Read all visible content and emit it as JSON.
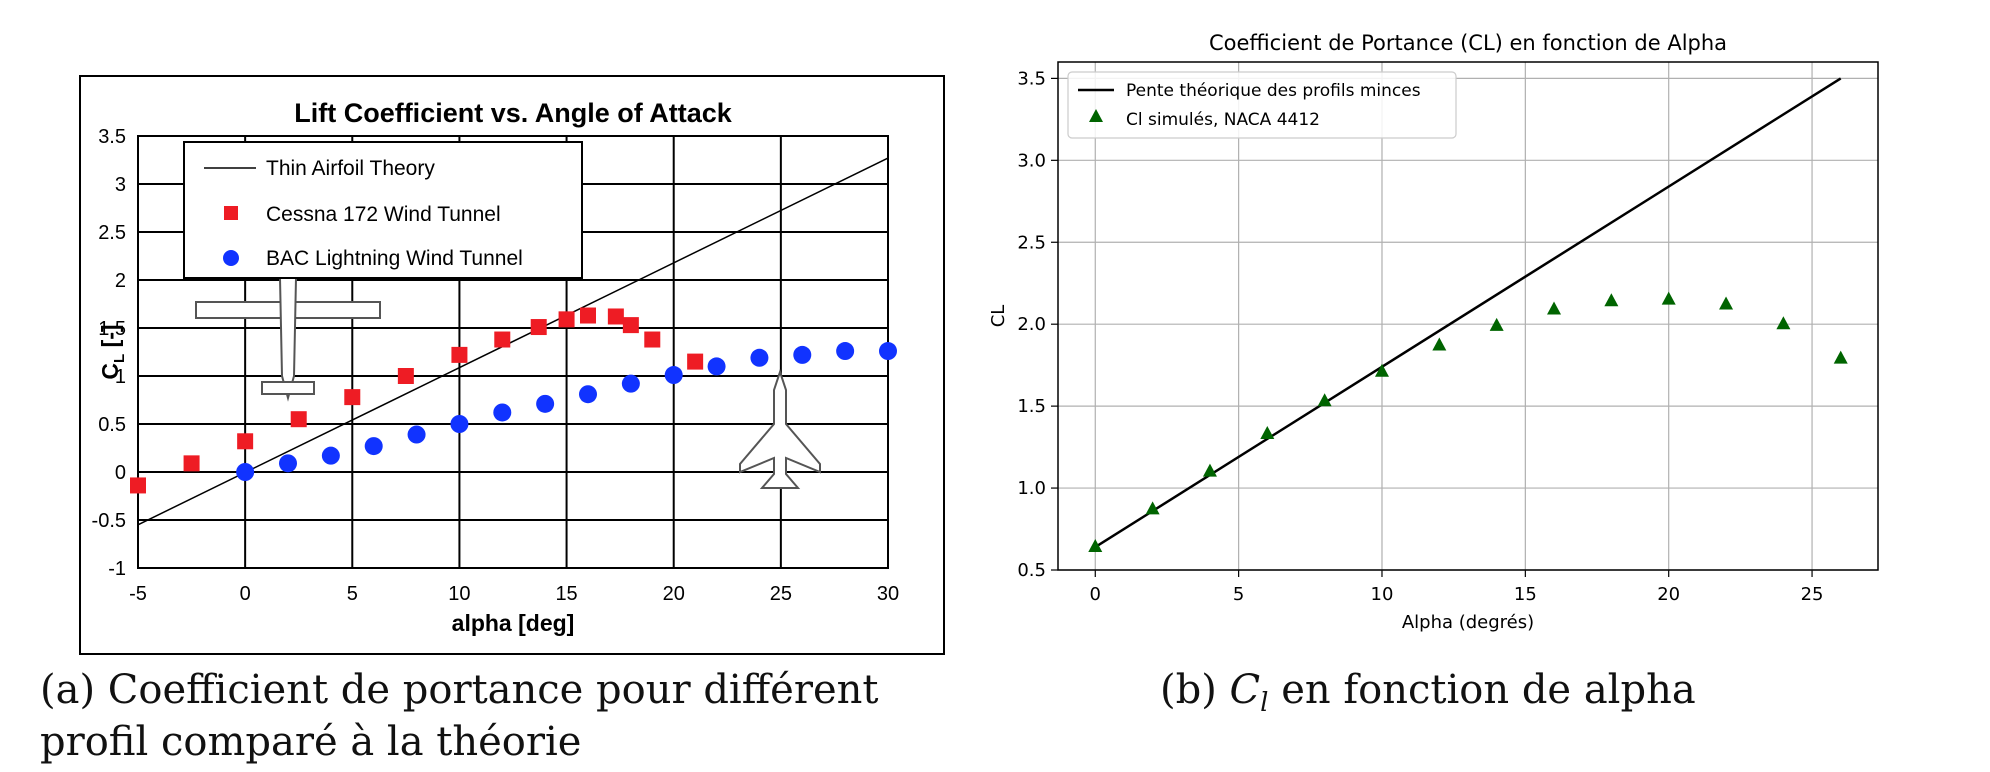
{
  "figure_a": {
    "caption_label": "(a)",
    "caption_text": "Coefficient de portance pour différent profil comparé à la théorie"
  },
  "figure_b": {
    "caption_label": "(b)",
    "caption_symbol": "C",
    "caption_subscript": "l",
    "caption_text": "en fonction de alpha"
  },
  "chart_data": [
    {
      "type": "scatter",
      "title": "Lift Coefficient vs. Angle of Attack",
      "xlabel": "alpha [deg]",
      "ylabel_main": "C",
      "ylabel_sub": "L",
      "ylabel_unit": "[-]",
      "xlim": [
        -5,
        30
      ],
      "ylim": [
        -1,
        3.5
      ],
      "xticks": [
        -5,
        0,
        5,
        10,
        15,
        20,
        25,
        30
      ],
      "yticks": [
        -1,
        -0.5,
        0,
        0.5,
        1,
        1.5,
        2,
        2.5,
        3,
        3.5
      ],
      "grid": true,
      "legend_position": "top-left",
      "icons": [
        "cessna-172-airplane-icon",
        "bac-lightning-jet-icon"
      ],
      "series": [
        {
          "name": "Thin Airfoil Theory",
          "kind": "line",
          "color": "#000000",
          "x": [
            -5,
            30
          ],
          "y": [
            -0.55,
            3.27
          ]
        },
        {
          "name": "Cessna 172 Wind Tunnel",
          "kind": "square",
          "color": "#ee1c24",
          "x": [
            -5,
            -2.5,
            0,
            2.5,
            5,
            7.5,
            10,
            12,
            13.7,
            15,
            16,
            17.3,
            18,
            19,
            21
          ],
          "y": [
            -0.14,
            0.09,
            0.32,
            0.55,
            0.78,
            1.0,
            1.22,
            1.38,
            1.51,
            1.59,
            1.63,
            1.62,
            1.53,
            1.38,
            1.15
          ]
        },
        {
          "name": "BAC Lightning Wind Tunnel",
          "kind": "circle",
          "color": "#1133ff",
          "x": [
            0,
            2,
            4,
            6,
            8,
            10,
            12,
            14,
            16,
            18,
            20,
            22,
            24,
            26,
            28,
            30
          ],
          "y": [
            0.0,
            0.09,
            0.17,
            0.27,
            0.39,
            0.5,
            0.62,
            0.71,
            0.81,
            0.92,
            1.01,
            1.1,
            1.19,
            1.22,
            1.26,
            1.26
          ]
        }
      ]
    },
    {
      "type": "scatter",
      "title": "Coefficient de Portance (CL) en fonction de Alpha",
      "xlabel": "Alpha (degrés)",
      "ylabel": "CL",
      "xlim": [
        -1.3,
        27.3
      ],
      "ylim": [
        0.5,
        3.6
      ],
      "xticks": [
        0,
        5,
        10,
        15,
        20,
        25
      ],
      "yticks": [
        0.5,
        1.0,
        1.5,
        2.0,
        2.5,
        3.0,
        3.5
      ],
      "xtick_labels": [
        "0",
        "5",
        "10",
        "15",
        "20",
        "25"
      ],
      "ytick_labels": [
        "0.5",
        "1.0",
        "1.5",
        "2.0",
        "2.5",
        "3.0",
        "3.5"
      ],
      "grid": true,
      "legend_position": "top-left",
      "series": [
        {
          "name": "Pente théorique des profils minces",
          "kind": "line",
          "color": "#000000",
          "x": [
            0,
            26
          ],
          "y": [
            0.64,
            3.5
          ]
        },
        {
          "name": "Cl simulés, NACA 4412",
          "kind": "triangle",
          "color": "#006400",
          "x": [
            0,
            2,
            4,
            6,
            8,
            10,
            12,
            14,
            16,
            18,
            20,
            22,
            24,
            26
          ],
          "y": [
            0.64,
            0.87,
            1.1,
            1.33,
            1.53,
            1.71,
            1.87,
            1.99,
            2.09,
            2.14,
            2.15,
            2.12,
            2.0,
            1.79
          ]
        }
      ]
    }
  ]
}
